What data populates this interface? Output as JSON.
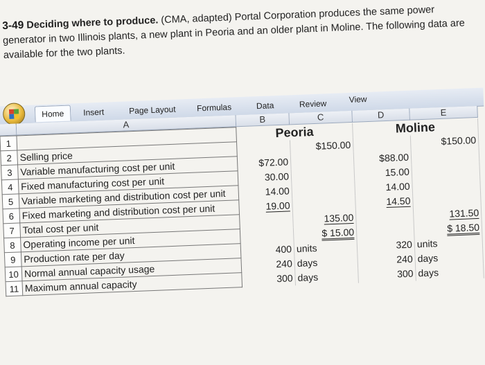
{
  "problem": {
    "number": "3-49",
    "title": "Deciding where to produce.",
    "text": "(CMA, adapted) Portal Corporation produces the same power generator in two Illinois plants, a new plant in Peoria and an older plant in Moline. The following data are available for the two plants."
  },
  "ribbon": {
    "tabs": [
      "Home",
      "Insert",
      "Page Layout",
      "Formulas",
      "Data",
      "Review",
      "View"
    ]
  },
  "columns": [
    "A",
    "B",
    "C",
    "D",
    "E"
  ],
  "plants": {
    "peoria": "Peoria",
    "moline": "Moline"
  },
  "rows": [
    {
      "n": "1",
      "label": ""
    },
    {
      "n": "2",
      "label": "Selling price"
    },
    {
      "n": "3",
      "label": "Variable manufacturing cost per unit"
    },
    {
      "n": "4",
      "label": "Fixed manufacturing cost per unit"
    },
    {
      "n": "5",
      "label": "Variable marketing and distribution cost per unit"
    },
    {
      "n": "6",
      "label": "Fixed marketing and distribution cost per unit"
    },
    {
      "n": "7",
      "label": "Total cost per unit"
    },
    {
      "n": "8",
      "label": "Operating income per unit"
    },
    {
      "n": "9",
      "label": "Production rate per day"
    },
    {
      "n": "10",
      "label": "Normal annual capacity usage"
    },
    {
      "n": "11",
      "label": "Maximum annual capacity"
    }
  ],
  "peoria": {
    "selling_price": "$150.00",
    "var_mfg": "$72.00",
    "fixed_mfg": "30.00",
    "var_mkt": "14.00",
    "fixed_mkt": "19.00",
    "total_cost": "135.00",
    "operating_income": "$ 15.00",
    "production_rate": "400",
    "normal_capacity": "240",
    "max_capacity": "300"
  },
  "moline": {
    "selling_price": "$150.00",
    "var_mfg": "$88.00",
    "fixed_mfg": "15.00",
    "var_mkt": "14.00",
    "fixed_mkt": "14.50",
    "total_cost": "131.50",
    "operating_income": "$ 18.50",
    "production_rate": "320",
    "normal_capacity": "240",
    "max_capacity": "300"
  },
  "units": {
    "units": "units",
    "days": "days"
  }
}
